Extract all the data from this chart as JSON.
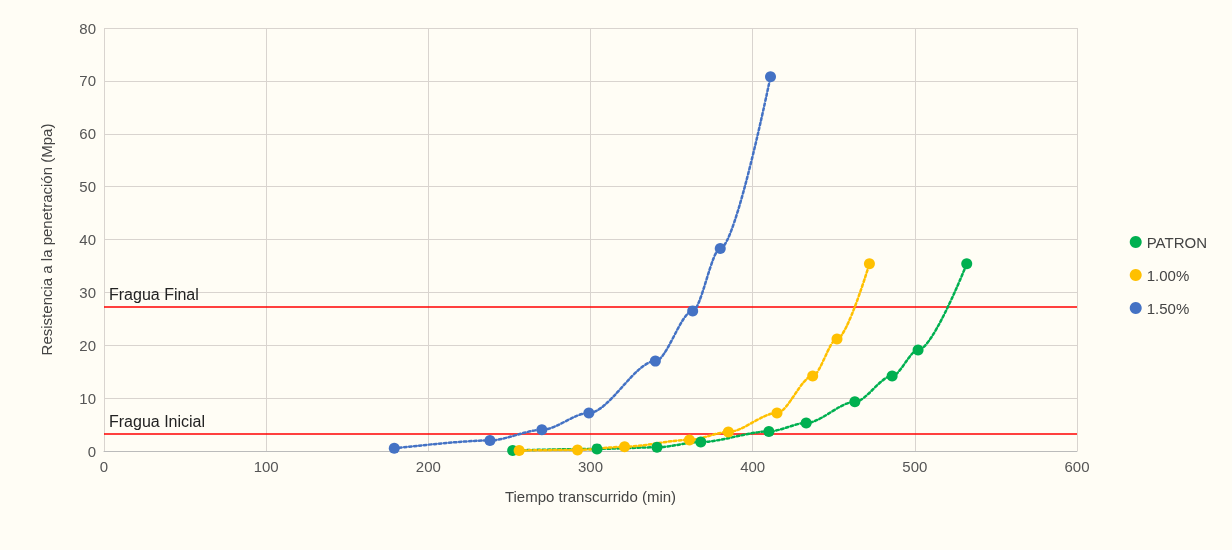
{
  "chart_data": {
    "type": "line",
    "xlabel": "Tiempo transcurrido (min)",
    "ylabel": "Resistencia a la penetración (Mpa)",
    "xlim": [
      0,
      600
    ],
    "xticks": [
      0,
      100,
      200,
      300,
      400,
      500,
      600
    ],
    "ylim": [
      0,
      80
    ],
    "yticks": [
      0,
      10,
      20,
      30,
      40,
      50,
      60,
      70,
      80
    ],
    "grid": true,
    "legend": "right",
    "marker": "circle",
    "line_style": "dotted",
    "series": [
      {
        "name": "PATRON",
        "color": "#00b050",
        "x": [
          252,
          304,
          341,
          368,
          410,
          433,
          463,
          486,
          502,
          532
        ],
        "values": [
          0.1,
          0.4,
          0.7,
          1.7,
          3.7,
          5.3,
          9.3,
          14.2,
          19.1,
          35.4
        ]
      },
      {
        "name": "1.00%",
        "color": "#ffc000",
        "x": [
          256,
          292,
          321,
          361,
          385,
          415,
          437,
          452,
          472
        ],
        "values": [
          0.1,
          0.2,
          0.8,
          2.1,
          3.6,
          7.2,
          14.2,
          21.2,
          35.4
        ]
      },
      {
        "name": "1.50%",
        "color": "#4472c4",
        "x": [
          179,
          238,
          270,
          299,
          340,
          363,
          380,
          411
        ],
        "values": [
          0.5,
          2,
          4,
          7.2,
          17,
          26.5,
          38.3,
          70.8
        ]
      }
    ],
    "ref_lines": [
      {
        "axis": "y",
        "value": 27.2,
        "label": "Fragua Final",
        "color": "#ff0000"
      },
      {
        "axis": "y",
        "value": 3.2,
        "label": "Fragua Inicial",
        "color": "#ff0000"
      }
    ]
  }
}
